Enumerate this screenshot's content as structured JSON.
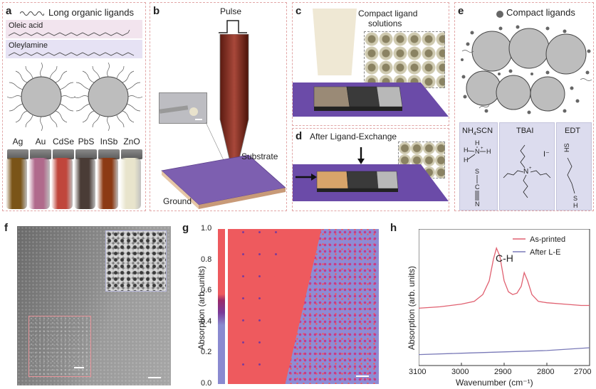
{
  "panel_a": {
    "label": "a",
    "title": "Long organic ligands",
    "ligand1": "Oleic acid",
    "ligand2": "Oleylamine",
    "vials": [
      {
        "name": "Ag",
        "color": "#7a5418"
      },
      {
        "name": "Au",
        "color": "#b06a8c"
      },
      {
        "name": "CdSe",
        "color": "#c0463c"
      },
      {
        "name": "PbS",
        "color": "#4a3c36"
      },
      {
        "name": "InSb",
        "color": "#8c3a14"
      },
      {
        "name": "ZnO",
        "color": "#e8e4cc"
      }
    ]
  },
  "panel_b": {
    "label": "b",
    "pulse": "Pulse",
    "substrate": "Substrate",
    "ground": "Ground"
  },
  "panel_c": {
    "label": "c",
    "title_line1": "Compact ligand",
    "title_line2": "solutions"
  },
  "panel_d": {
    "label": "d",
    "title": "After Ligand-Exchange"
  },
  "panel_e": {
    "label": "e",
    "title": "Compact ligands",
    "chem1": "NH4SCN",
    "chem1_main": "NH",
    "chem1_sub": "4",
    "chem1_rest": "SCN",
    "chem2": "TBAI",
    "chem3": "EDT",
    "iodide": "I⁻"
  },
  "panel_f": {
    "label": "f"
  },
  "panel_g": {
    "label": "g",
    "ylabel": "Absorption (arb. units)",
    "ticks": [
      "1.0",
      "0.8",
      "0.6",
      "0.4",
      "0.2",
      "0.0"
    ]
  },
  "panel_h": {
    "label": "h",
    "peak_label": "C-H",
    "legend": [
      "As-printed",
      "After L-E"
    ]
  },
  "chart_data": {
    "type": "line",
    "title": "",
    "xlabel": "Wavenumber (cm⁻¹)",
    "ylabel": "Absorption (arb. units)",
    "xlim": [
      3100,
      2700
    ],
    "xticks": [
      "3100",
      "3000",
      "2900",
      "2800",
      "2700"
    ],
    "series": [
      {
        "name": "As-printed",
        "color": "#e06070",
        "x": [
          3100,
          3050,
          3000,
          2970,
          2950,
          2935,
          2925,
          2918,
          2910,
          2900,
          2890,
          2880,
          2870,
          2860,
          2853,
          2845,
          2835,
          2820,
          2800,
          2760,
          2720,
          2700
        ],
        "y": [
          0.42,
          0.43,
          0.45,
          0.47,
          0.52,
          0.62,
          0.78,
          0.86,
          0.8,
          0.62,
          0.54,
          0.52,
          0.53,
          0.58,
          0.68,
          0.62,
          0.52,
          0.47,
          0.46,
          0.45,
          0.44,
          0.44
        ]
      },
      {
        "name": "After L-E",
        "color": "#7a7ab8",
        "x": [
          3100,
          3000,
          2900,
          2800,
          2700
        ],
        "y": [
          0.08,
          0.09,
          0.1,
          0.11,
          0.13
        ]
      }
    ]
  }
}
